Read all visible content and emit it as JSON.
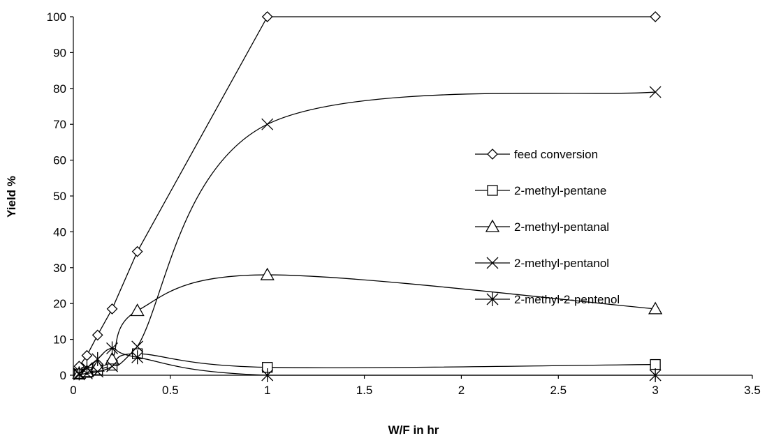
{
  "chart_data": {
    "type": "line",
    "xlabel": "W/F in hr",
    "ylabel": "Yield %",
    "xlim": [
      0,
      3.5
    ],
    "ylim": [
      0,
      100
    ],
    "x_ticks": [
      "0",
      "0.5",
      "1",
      "1.5",
      "2",
      "2.5",
      "3",
      "3.5"
    ],
    "y_ticks": [
      "0",
      "10",
      "20",
      "30",
      "40",
      "50",
      "60",
      "70",
      "80",
      "90",
      "100"
    ],
    "grid": false,
    "legend_position": "right",
    "series": [
      {
        "name": "feed conversion",
        "marker": "diamond",
        "x": [
          0.03,
          0.07,
          0.125,
          0.2,
          0.33,
          1,
          3
        ],
        "y": [
          2.5,
          5.5,
          11.2,
          18.5,
          34.5,
          100,
          100
        ]
      },
      {
        "name": "2-methyl-pentane",
        "marker": "square",
        "x": [
          0.03,
          0.07,
          0.125,
          0.2,
          0.33,
          1,
          3
        ],
        "y": [
          0.3,
          0.8,
          1.5,
          2.8,
          6,
          2.2,
          3
        ]
      },
      {
        "name": "2-methyl-pentanal",
        "marker": "triangle",
        "x": [
          0.03,
          0.07,
          0.125,
          0.2,
          0.33,
          1,
          3
        ],
        "y": [
          0.5,
          1,
          2.5,
          4.5,
          18,
          28,
          18.5
        ]
      },
      {
        "name": "2-methyl-pentanol",
        "marker": "x",
        "x": [
          0.03,
          0.07,
          0.125,
          0.2,
          0.33,
          1,
          3
        ],
        "y": [
          0.2,
          0.5,
          1,
          2.5,
          8,
          70,
          79
        ]
      },
      {
        "name": "2-methyl-2-pentenol",
        "marker": "star",
        "x": [
          0.03,
          0.07,
          0.125,
          0.2,
          0.33,
          1,
          3
        ],
        "y": [
          0.5,
          2,
          4.5,
          7.5,
          5,
          0,
          0
        ]
      }
    ]
  }
}
